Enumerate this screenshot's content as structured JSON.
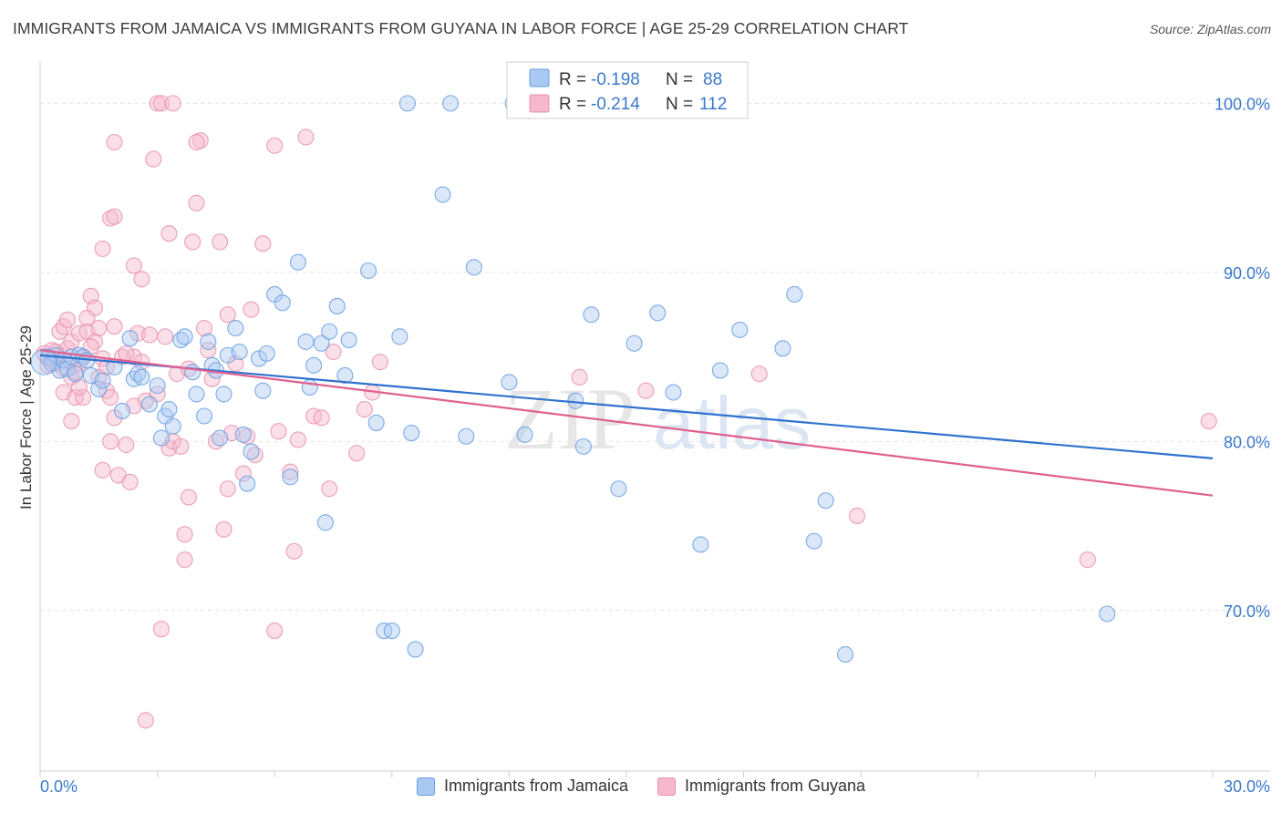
{
  "header": {
    "title": "IMMIGRANTS FROM JAMAICA VS IMMIGRANTS FROM GUYANA IN LABOR FORCE | AGE 25-29 CORRELATION CHART",
    "source": "Source: ZipAtlas.com"
  },
  "watermark": {
    "zip": "ZIP",
    "atlas": "atlas"
  },
  "legend_top": {
    "rows": [
      {
        "r_label": "R =",
        "r_value": "-0.198",
        "n_label": "N =",
        "n_value": "88"
      },
      {
        "r_label": "R =",
        "r_value": "-0.214",
        "n_label": "N =",
        "n_value": "112"
      }
    ]
  },
  "colors": {
    "jamaica_fill": "#aac9f2",
    "jamaica_stroke": "#6a9ee0",
    "jamaica_line": "#2f72cf",
    "guyana_fill": "#f6b8cc",
    "guyana_stroke": "#e890ad",
    "guyana_line": "#e0608e",
    "tick_label": "#3a78cc",
    "grid": "#e2e2e2"
  },
  "chart_data": {
    "type": "scatter",
    "title": "IMMIGRANTS FROM JAMAICA VS IMMIGRANTS FROM GUYANA IN LABOR FORCE | AGE 25-29 CORRELATION CHART",
    "xlabel": "",
    "ylabel": "In Labor Force | Age 25-29",
    "xlim": [
      0,
      30
    ],
    "ylim": [
      60.5,
      102.5
    ],
    "x_tick_labels": [
      "0.0%",
      "30.0%"
    ],
    "y_ticks": [
      70,
      80,
      90,
      100
    ],
    "y_tick_labels": [
      "70.0%",
      "80.0%",
      "90.0%",
      "100.0%"
    ],
    "grid": true,
    "legend_position": "top-center",
    "series": [
      {
        "name": "Immigrants from Jamaica",
        "color": "#6a9ee0",
        "r": -0.198,
        "n": 88,
        "trend": {
          "x": [
            0,
            30
          ],
          "y": [
            85.1,
            79.0
          ]
        },
        "points": [
          [
            0.2,
            85.0
          ],
          [
            0.3,
            84.6
          ],
          [
            0.4,
            85.1
          ],
          [
            0.5,
            84.2
          ],
          [
            0.6,
            84.8
          ],
          [
            0.7,
            84.3
          ],
          [
            0.8,
            85.0
          ],
          [
            0.9,
            84.0
          ],
          [
            1.0,
            85.1
          ],
          [
            1.1,
            85.0
          ],
          [
            1.2,
            84.8
          ],
          [
            1.3,
            83.9
          ],
          [
            1.5,
            83.1
          ],
          [
            1.6,
            83.6
          ],
          [
            1.9,
            84.4
          ],
          [
            2.1,
            81.8
          ],
          [
            2.3,
            86.1
          ],
          [
            2.4,
            83.7
          ],
          [
            2.5,
            84.0
          ],
          [
            2.6,
            83.8
          ],
          [
            2.8,
            82.2
          ],
          [
            3.0,
            83.3
          ],
          [
            3.1,
            80.2
          ],
          [
            3.2,
            81.5
          ],
          [
            3.3,
            81.9
          ],
          [
            3.4,
            80.9
          ],
          [
            3.6,
            86.0
          ],
          [
            3.7,
            86.2
          ],
          [
            3.9,
            84.1
          ],
          [
            4.0,
            82.8
          ],
          [
            4.2,
            81.5
          ],
          [
            4.3,
            85.9
          ],
          [
            4.4,
            84.5
          ],
          [
            4.5,
            84.2
          ],
          [
            4.6,
            80.2
          ],
          [
            4.7,
            82.8
          ],
          [
            4.8,
            85.1
          ],
          [
            5.0,
            86.7
          ],
          [
            5.1,
            85.3
          ],
          [
            5.2,
            80.4
          ],
          [
            5.3,
            77.5
          ],
          [
            5.4,
            79.4
          ],
          [
            5.6,
            84.9
          ],
          [
            5.7,
            83.0
          ],
          [
            5.8,
            85.2
          ],
          [
            6.0,
            88.7
          ],
          [
            6.2,
            88.2
          ],
          [
            6.4,
            77.9
          ],
          [
            6.6,
            90.6
          ],
          [
            6.8,
            85.9
          ],
          [
            6.9,
            83.2
          ],
          [
            7.0,
            84.5
          ],
          [
            7.2,
            85.8
          ],
          [
            7.3,
            75.2
          ],
          [
            7.4,
            86.5
          ],
          [
            7.6,
            88.0
          ],
          [
            7.8,
            83.9
          ],
          [
            7.9,
            86.0
          ],
          [
            8.4,
            90.1
          ],
          [
            8.6,
            81.1
          ],
          [
            8.8,
            68.8
          ],
          [
            9.0,
            68.8
          ],
          [
            9.2,
            86.2
          ],
          [
            9.5,
            80.5
          ],
          [
            9.6,
            67.7
          ],
          [
            9.4,
            100.0
          ],
          [
            10.3,
            94.6
          ],
          [
            10.5,
            100.0
          ],
          [
            10.9,
            80.3
          ],
          [
            11.1,
            90.3
          ],
          [
            12.1,
            100.0
          ],
          [
            12.0,
            83.5
          ],
          [
            12.4,
            80.4
          ],
          [
            13.7,
            82.4
          ],
          [
            13.9,
            79.7
          ],
          [
            14.1,
            87.5
          ],
          [
            14.8,
            77.2
          ],
          [
            15.2,
            85.8
          ],
          [
            15.8,
            87.6
          ],
          [
            16.2,
            82.9
          ],
          [
            16.9,
            73.9
          ],
          [
            17.4,
            84.2
          ],
          [
            17.9,
            86.6
          ],
          [
            19.0,
            85.5
          ],
          [
            19.3,
            88.7
          ],
          [
            19.8,
            74.1
          ],
          [
            20.1,
            76.5
          ],
          [
            20.6,
            67.4
          ],
          [
            27.3,
            69.8
          ]
        ]
      },
      {
        "name": "Immigrants from Guyana",
        "color": "#e890ad",
        "r": -0.214,
        "n": 112,
        "trend": {
          "x": [
            0,
            30
          ],
          "y": [
            85.4,
            76.8
          ]
        },
        "points": [
          [
            0.1,
            85.2
          ],
          [
            0.2,
            84.9
          ],
          [
            0.3,
            85.4
          ],
          [
            0.4,
            84.6
          ],
          [
            0.5,
            85.1
          ],
          [
            0.6,
            84.3
          ],
          [
            0.7,
            85.5
          ],
          [
            0.8,
            83.8
          ],
          [
            0.5,
            86.5
          ],
          [
            0.6,
            86.8
          ],
          [
            0.7,
            87.2
          ],
          [
            0.8,
            85.9
          ],
          [
            0.9,
            84.1
          ],
          [
            1.0,
            86.4
          ],
          [
            1.1,
            85.0
          ],
          [
            0.6,
            82.9
          ],
          [
            0.8,
            81.2
          ],
          [
            0.9,
            82.6
          ],
          [
            1.0,
            84.6
          ],
          [
            1.1,
            82.6
          ],
          [
            1.2,
            86.5
          ],
          [
            1.3,
            88.6
          ],
          [
            1.4,
            87.9
          ],
          [
            1.5,
            86.7
          ],
          [
            1.6,
            84.9
          ],
          [
            1.7,
            83.0
          ],
          [
            1.8,
            82.6
          ],
          [
            1.9,
            81.4
          ],
          [
            1.8,
            80.0
          ],
          [
            1.6,
            78.3
          ],
          [
            2.0,
            78.0
          ],
          [
            2.2,
            79.8
          ],
          [
            2.3,
            77.6
          ],
          [
            2.4,
            85.0
          ],
          [
            2.5,
            86.4
          ],
          [
            2.6,
            89.6
          ],
          [
            2.7,
            82.4
          ],
          [
            1.6,
            91.4
          ],
          [
            1.8,
            93.2
          ],
          [
            1.9,
            93.3
          ],
          [
            2.4,
            90.4
          ],
          [
            2.8,
            86.3
          ],
          [
            2.7,
            63.5
          ],
          [
            3.0,
            82.8
          ],
          [
            3.1,
            68.9
          ],
          [
            3.3,
            79.6
          ],
          [
            3.4,
            80.0
          ],
          [
            3.5,
            84.0
          ],
          [
            3.6,
            79.7
          ],
          [
            3.7,
            74.5
          ],
          [
            3.8,
            76.7
          ],
          [
            3.9,
            91.8
          ],
          [
            4.0,
            94.1
          ],
          [
            4.1,
            97.8
          ],
          [
            4.2,
            86.7
          ],
          [
            4.3,
            85.4
          ],
          [
            4.4,
            83.7
          ],
          [
            4.5,
            80.0
          ],
          [
            4.6,
            91.8
          ],
          [
            4.7,
            74.8
          ],
          [
            4.8,
            77.2
          ],
          [
            4.9,
            80.5
          ],
          [
            5.0,
            84.6
          ],
          [
            5.2,
            78.1
          ],
          [
            5.3,
            80.3
          ],
          [
            5.4,
            87.8
          ],
          [
            5.5,
            79.2
          ],
          [
            5.7,
            91.7
          ],
          [
            6.0,
            68.8
          ],
          [
            6.1,
            80.6
          ],
          [
            6.4,
            78.2
          ],
          [
            6.5,
            73.5
          ],
          [
            6.6,
            80.1
          ],
          [
            7.0,
            81.5
          ],
          [
            7.2,
            81.4
          ],
          [
            7.4,
            77.2
          ],
          [
            7.5,
            85.3
          ],
          [
            8.1,
            79.3
          ],
          [
            8.3,
            81.9
          ],
          [
            8.5,
            82.9
          ],
          [
            8.7,
            84.7
          ],
          [
            3.0,
            100.0
          ],
          [
            3.1,
            100.0
          ],
          [
            3.4,
            100.0
          ],
          [
            1.9,
            97.7
          ],
          [
            2.9,
            96.7
          ],
          [
            4.0,
            97.7
          ],
          [
            6.0,
            97.5
          ],
          [
            6.8,
            98.0
          ],
          [
            3.3,
            92.3
          ],
          [
            4.8,
            87.5
          ],
          [
            1.4,
            85.9
          ],
          [
            1.5,
            83.8
          ],
          [
            1.7,
            84.4
          ],
          [
            1.9,
            86.8
          ],
          [
            2.1,
            85.0
          ],
          [
            3.7,
            73.0
          ],
          [
            13.8,
            83.8
          ],
          [
            15.5,
            83.0
          ],
          [
            18.4,
            84.0
          ],
          [
            20.9,
            75.6
          ],
          [
            26.8,
            73.0
          ],
          [
            29.9,
            81.2
          ],
          [
            1.2,
            87.3
          ],
          [
            0.3,
            84.8
          ],
          [
            0.4,
            85.3
          ],
          [
            0.2,
            84.5
          ],
          [
            1.3,
            85.6
          ],
          [
            2.6,
            84.7
          ],
          [
            3.8,
            84.3
          ],
          [
            2.2,
            85.2
          ],
          [
            1.0,
            83.2
          ],
          [
            2.4,
            82.1
          ],
          [
            3.2,
            86.2
          ]
        ]
      }
    ]
  },
  "legend_bottom": {
    "items": [
      {
        "label": "Immigrants from Jamaica"
      },
      {
        "label": "Immigrants from Guyana"
      }
    ]
  }
}
